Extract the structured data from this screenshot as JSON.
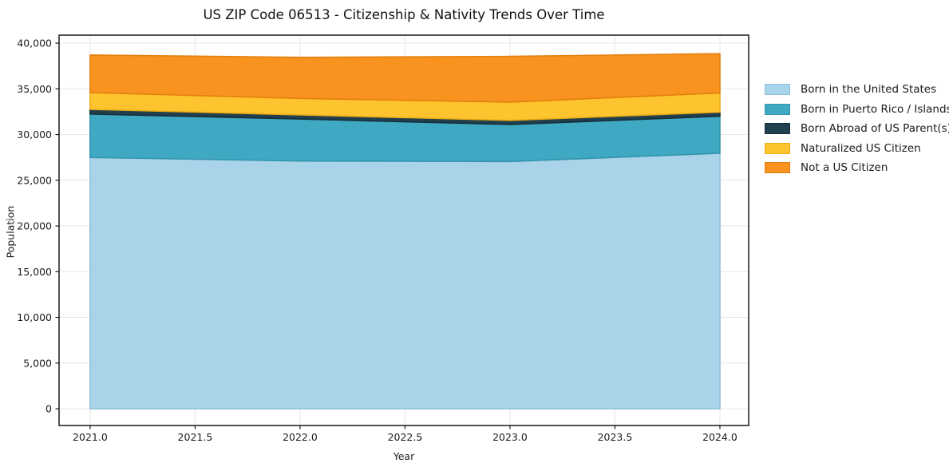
{
  "chart_data": {
    "type": "area",
    "stacked": true,
    "title": "US ZIP Code 06513 - Citizenship & Nativity Trends Over Time",
    "xlabel": "Year",
    "ylabel": "Population",
    "x": [
      2021,
      2022,
      2023,
      2024
    ],
    "series": [
      {
        "name": "Born in the United States",
        "values": [
          27500,
          27100,
          27050,
          27950
        ],
        "fill": "#A9D3E8",
        "edge": "#8CC0DC"
      },
      {
        "name": "Born in Puerto Rico / Islands",
        "values": [
          4750,
          4600,
          4050,
          4050
        ],
        "fill": "#3FA8C2",
        "edge": "#3395AD"
      },
      {
        "name": "Born Abroad of US Parent(s)",
        "values": [
          500,
          450,
          450,
          450
        ],
        "fill": "#20404F",
        "edge": "#182F3B"
      },
      {
        "name": "Naturalized US Citizen",
        "values": [
          1850,
          1800,
          2000,
          2100
        ],
        "fill": "#FDC42F",
        "edge": "#EFAD14"
      },
      {
        "name": "Not a US Citizen",
        "values": [
          4100,
          4500,
          5000,
          4300
        ],
        "fill": "#F7931E",
        "edge": "#E57F0D"
      }
    ],
    "xticks": [
      2021.0,
      2021.5,
      2022.0,
      2022.5,
      2023.0,
      2023.5,
      2024.0
    ],
    "yticks": [
      0,
      5000,
      10000,
      15000,
      20000,
      25000,
      30000,
      35000,
      40000
    ],
    "xlim": [
      2020.852,
      2024.137
    ],
    "ylim": [
      -1830,
      40875
    ],
    "grid": true,
    "legend_position": "center right outside",
    "colors": {
      "spine": "#1a1a1a",
      "grid": "#e7e7e7",
      "tick_label": "#1a1a1a",
      "background": "#ffffff"
    }
  }
}
